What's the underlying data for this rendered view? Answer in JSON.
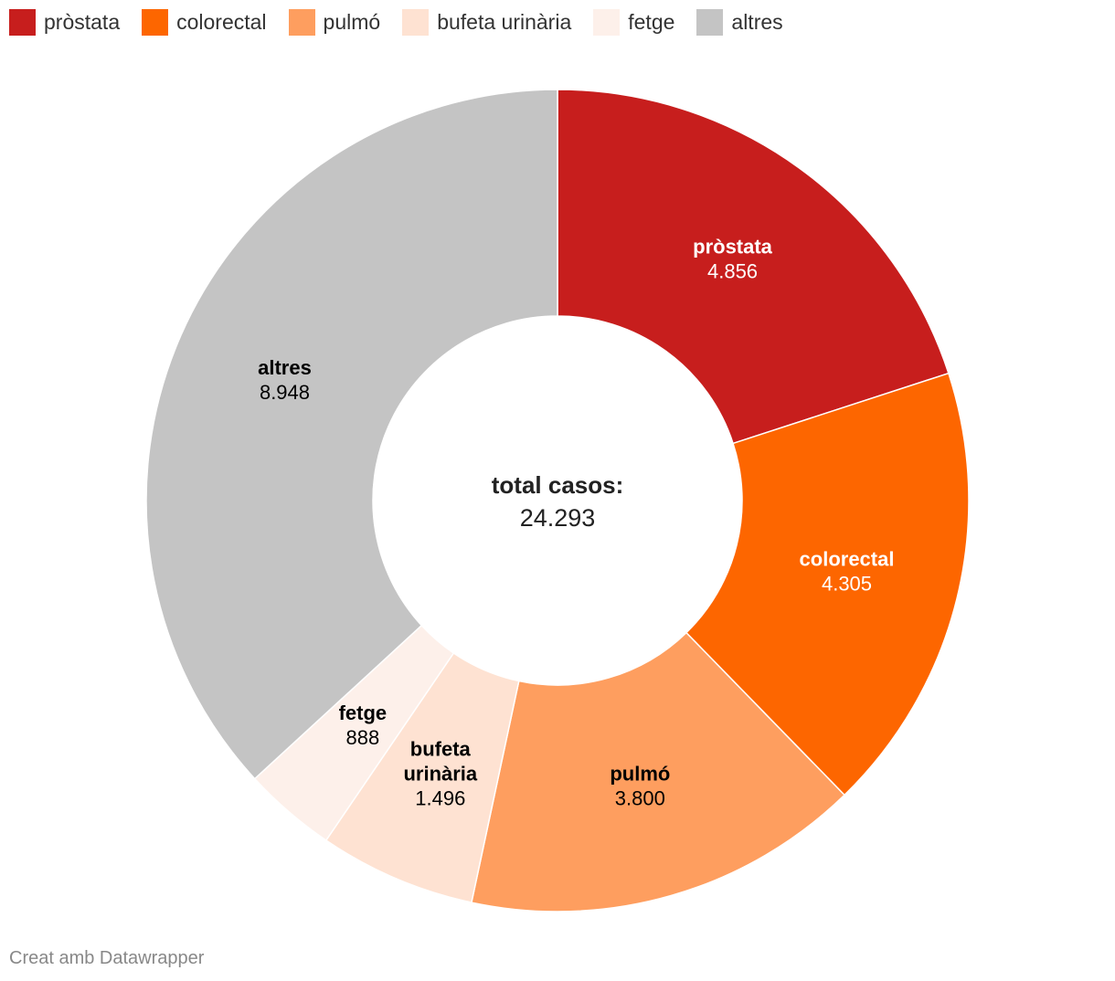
{
  "chart_data": {
    "type": "pie",
    "variant": "donut",
    "categories": [
      "pròstata",
      "colorectal",
      "pulmó",
      "bufeta urinària",
      "fetge",
      "altres"
    ],
    "values": [
      4856,
      4305,
      3800,
      1496,
      888,
      8948
    ],
    "value_labels": [
      "4.856",
      "4.305",
      "3.800",
      "1.496",
      "888",
      "8.948"
    ],
    "slice_label_lines": [
      [
        "pròstata"
      ],
      [
        "colorectal"
      ],
      [
        "pulmó"
      ],
      [
        "bufeta",
        "urinària"
      ],
      [
        "fetge"
      ],
      [
        "altres"
      ]
    ],
    "colors": [
      "#c71e1d",
      "#fd6600",
      "#fe9e5f",
      "#fee2d2",
      "#fdf0ea",
      "#c4c4c4"
    ],
    "label_text_colors": [
      "#ffffff",
      "#ffffff",
      "#000000",
      "#000000",
      "#000000",
      "#000000"
    ],
    "legend_placement": "top-left",
    "center_title": "total casos:",
    "center_value": "24.293"
  },
  "footer": {
    "credit": "Creat amb Datawrapper"
  }
}
